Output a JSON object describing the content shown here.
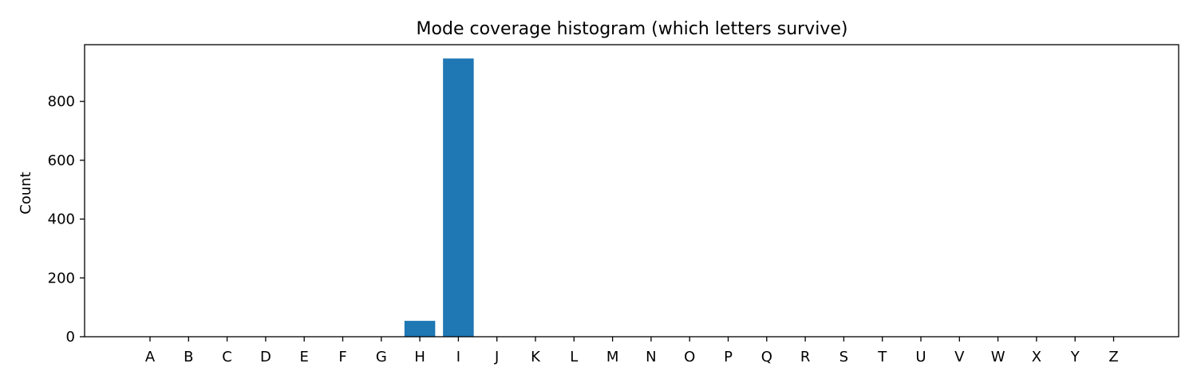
{
  "chart_data": {
    "type": "bar",
    "title": "Mode coverage histogram (which letters survive)",
    "xlabel": "",
    "ylabel": "Count",
    "categories": [
      "A",
      "B",
      "C",
      "D",
      "E",
      "F",
      "G",
      "H",
      "I",
      "J",
      "K",
      "L",
      "M",
      "N",
      "O",
      "P",
      "Q",
      "R",
      "S",
      "T",
      "U",
      "V",
      "W",
      "X",
      "Y",
      "Z"
    ],
    "values": [
      0,
      0,
      0,
      0,
      0,
      0,
      0,
      54,
      946,
      0,
      0,
      0,
      0,
      0,
      0,
      0,
      0,
      0,
      0,
      0,
      0,
      0,
      0,
      0,
      0,
      0
    ],
    "yticks": [
      0,
      200,
      400,
      600,
      800
    ],
    "ylim": [
      0,
      993
    ],
    "bar_color": "#1f77b4",
    "grid": false,
    "legend": "none"
  }
}
